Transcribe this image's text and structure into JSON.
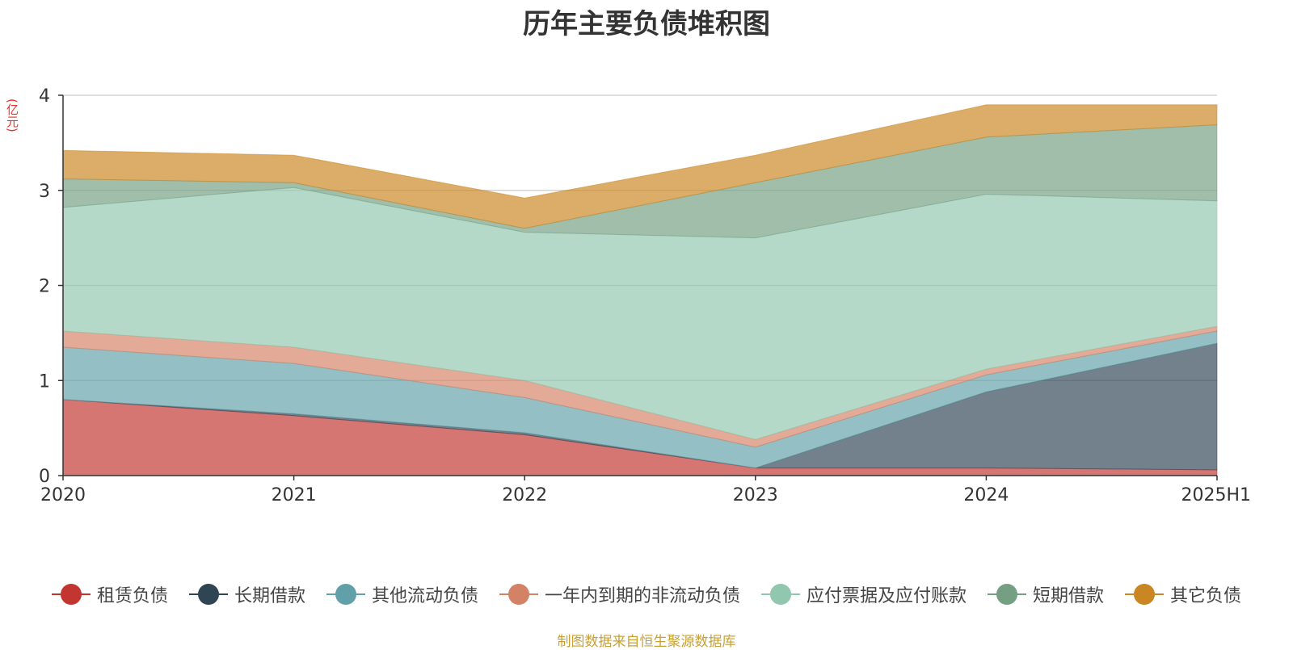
{
  "chart_data": {
    "type": "area",
    "stacked": true,
    "title": "历年主要负债堆积图",
    "unit": "(亿元)",
    "categories": [
      "2020",
      "2021",
      "2022",
      "2023",
      "2024",
      "2025H1"
    ],
    "ylim": [
      0,
      4
    ],
    "yticks": [
      "0",
      "1",
      "2",
      "3",
      "4"
    ],
    "grid": true,
    "legend_position": "bottom",
    "series": [
      {
        "name": "租赁负债",
        "color": "#c23531",
        "values": [
          0.8,
          0.63,
          0.43,
          0.08,
          0.08,
          0.06
        ]
      },
      {
        "name": "长期借款",
        "color": "#2f4554",
        "values": [
          0.0,
          0.02,
          0.02,
          0.0,
          0.8,
          1.33
        ]
      },
      {
        "name": "其他流动负债",
        "color": "#61a0a8",
        "values": [
          0.55,
          0.53,
          0.37,
          0.22,
          0.18,
          0.13
        ]
      },
      {
        "name": "一年内到期的非流动负债",
        "color": "#d48265",
        "values": [
          0.17,
          0.17,
          0.18,
          0.08,
          0.06,
          0.05
        ]
      },
      {
        "name": "应付票据及应付账款",
        "color": "#91c7ae",
        "values": [
          1.3,
          1.68,
          1.56,
          2.12,
          1.84,
          1.32
        ]
      },
      {
        "name": "短期借款",
        "color": "#749f83",
        "values": [
          0.3,
          0.05,
          0.04,
          0.58,
          0.6,
          0.8
        ]
      },
      {
        "name": "其它负债",
        "color": "#ca8622",
        "values": [
          0.3,
          0.29,
          0.32,
          0.29,
          0.34,
          0.21
        ]
      }
    ]
  },
  "source_note": "制图数据来自恒生聚源数据库"
}
